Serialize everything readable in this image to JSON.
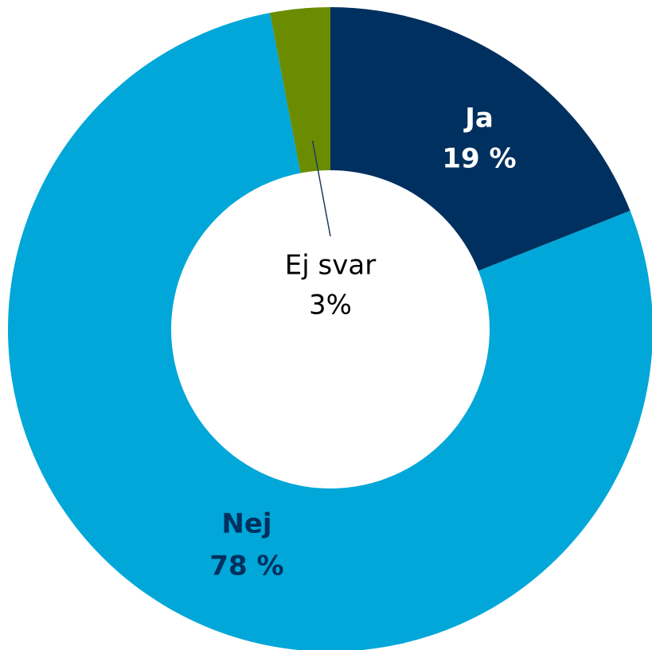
{
  "chart_data": {
    "type": "donut",
    "categories": [
      "Ja",
      "Nej",
      "Ej svar"
    ],
    "values": [
      19,
      78,
      3
    ],
    "value_labels": [
      "19 %",
      "78 %",
      "3%"
    ],
    "colors": [
      "#00305f",
      "#00a7d8",
      "#6b8c00"
    ]
  }
}
